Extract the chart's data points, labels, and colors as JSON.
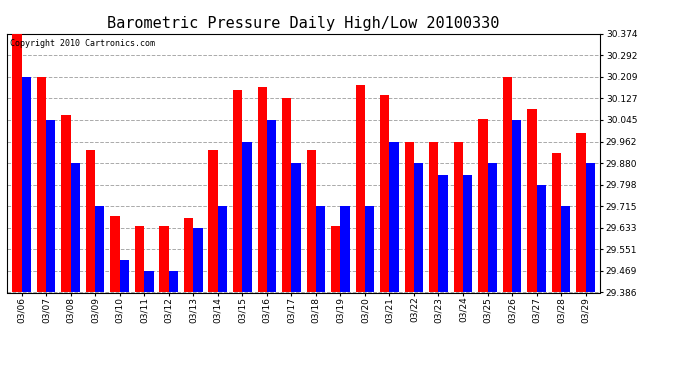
{
  "title": "Barometric Pressure Daily High/Low 20100330",
  "copyright_text": "Copyright 2010 Cartronics.com",
  "dates": [
    "03/06",
    "03/07",
    "03/08",
    "03/09",
    "03/10",
    "03/11",
    "03/12",
    "03/13",
    "03/14",
    "03/15",
    "03/16",
    "03/17",
    "03/18",
    "03/19",
    "03/20",
    "03/21",
    "03/22",
    "03/23",
    "03/24",
    "03/25",
    "03/26",
    "03/27",
    "03/28",
    "03/29"
  ],
  "highs": [
    30.374,
    30.209,
    30.062,
    29.93,
    29.68,
    29.64,
    29.64,
    29.67,
    29.93,
    30.16,
    30.17,
    30.127,
    29.93,
    29.64,
    30.18,
    30.14,
    29.962,
    29.962,
    29.962,
    30.05,
    30.209,
    30.085,
    29.92,
    29.995
  ],
  "lows": [
    30.209,
    30.045,
    29.88,
    29.715,
    29.51,
    29.469,
    29.469,
    29.633,
    29.715,
    29.962,
    30.045,
    29.88,
    29.715,
    29.715,
    29.715,
    29.962,
    29.88,
    29.833,
    29.833,
    29.88,
    30.045,
    29.798,
    29.715,
    29.88
  ],
  "bar_color_high": "#ff0000",
  "bar_color_low": "#0000ff",
  "background_color": "#ffffff",
  "grid_color": "#aaaaaa",
  "ymin": 29.386,
  "ymax": 30.374,
  "yticks": [
    29.386,
    29.469,
    29.551,
    29.633,
    29.715,
    29.798,
    29.88,
    29.962,
    30.045,
    30.127,
    30.209,
    30.292,
    30.374
  ],
  "title_fontsize": 11,
  "tick_fontsize": 6.5,
  "copyright_fontsize": 6
}
